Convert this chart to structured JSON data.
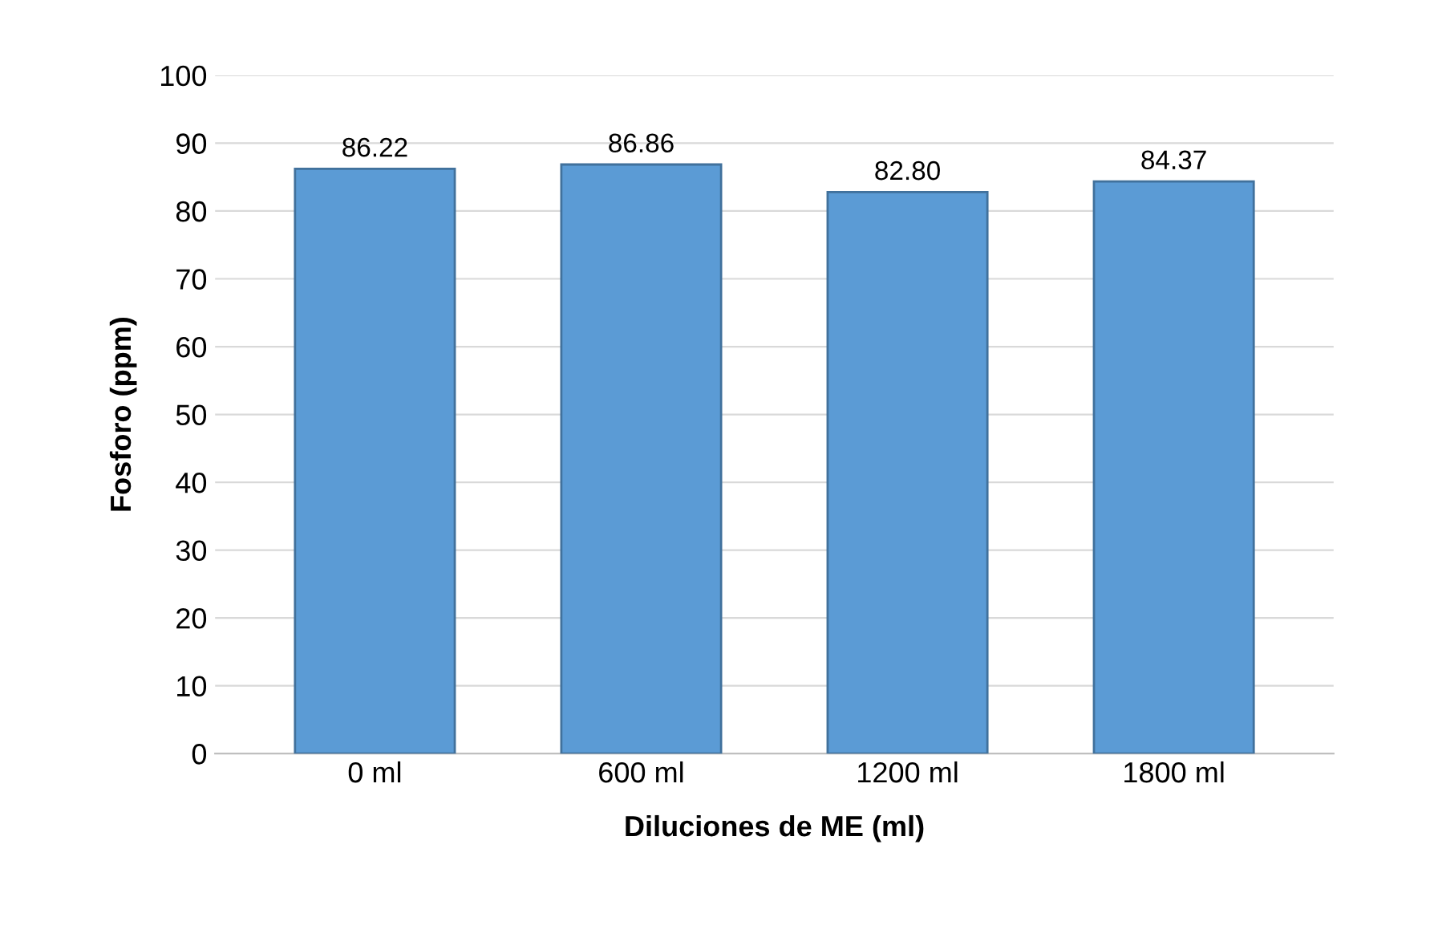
{
  "chart_data": {
    "type": "bar",
    "xlabel": "Diluciones de ME (ml)",
    "ylabel": "Fosforo (ppm)",
    "categories": [
      "0 ml",
      "600 ml",
      "1200 ml",
      "1800 ml"
    ],
    "values": [
      86.22,
      86.86,
      82.8,
      84.37
    ],
    "value_labels": [
      "86.22",
      "86.86",
      "82.80",
      "84.37"
    ],
    "color": "#5b9bd5",
    "ylim": [
      0,
      100
    ],
    "yticks": [
      0,
      10,
      20,
      30,
      40,
      50,
      60,
      70,
      80,
      90,
      100
    ],
    "grid": "y"
  }
}
